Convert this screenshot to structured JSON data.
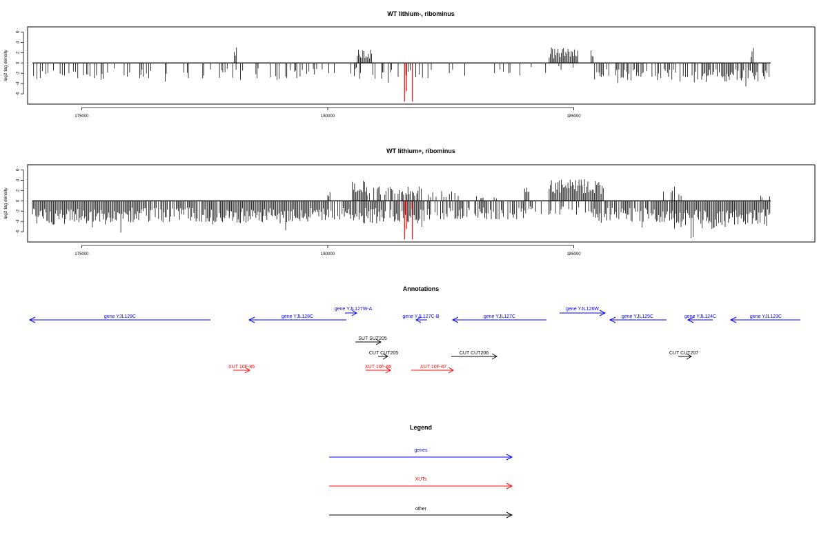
{
  "chart_data": [
    {
      "type": "bar",
      "title": "WT lithium-, ribominus",
      "xlabel": "",
      "ylabel": "log2 tag density",
      "xlim": [
        173900,
        189900
      ],
      "ylim": [
        -8,
        7
      ],
      "xticks": [
        175000,
        180000,
        185000
      ],
      "yticks": [
        -6,
        -4,
        -2,
        0,
        2,
        4,
        6
      ],
      "grid": false,
      "baseline": [
        174000,
        189000
      ],
      "series": [
        {
          "strand": "minus",
          "color": "#000000",
          "segments": [
            [
              174000,
              176000,
              -3.1,
              0.35
            ],
            [
              176000,
              177800,
              -2.9,
              0.25
            ],
            [
              177800,
              180000,
              -3.0,
              0.35
            ],
            [
              180000,
              180600,
              -2.6,
              0.25
            ],
            [
              180600,
              182200,
              -2.9,
              0.25
            ],
            [
              182200,
              184000,
              -2.3,
              0.15
            ],
            [
              184000,
              185400,
              -1.8,
              0.08
            ],
            [
              185400,
              187000,
              -3.2,
              0.5
            ],
            [
              187000,
              187600,
              -3.5,
              0.6
            ],
            [
              187600,
              189000,
              -3.4,
              0.8
            ]
          ]
        },
        {
          "strand": "plus",
          "color": "#000000",
          "segments": [
            [
              178100,
              178150,
              2.8,
              1.0
            ],
            [
              180600,
              180900,
              2.4,
              1.0
            ],
            [
              184500,
              185100,
              2.6,
              1.0
            ],
            [
              185350,
              185400,
              2.6,
              1.0
            ],
            [
              188600,
              188650,
              2.3,
              1.0
            ]
          ]
        },
        {
          "strand": "highlight",
          "color": "#ff0000",
          "bars": [
            [
              181560,
              -7.5
            ],
            [
              181600,
              -5.5
            ],
            [
              181720,
              -7.5
            ]
          ]
        }
      ]
    },
    {
      "type": "bar",
      "title": "WT lithium+, ribominus",
      "xlabel": "",
      "ylabel": "log2 tag density",
      "xlim": [
        173900,
        189900
      ],
      "ylim": [
        -8,
        7
      ],
      "xticks": [
        175000,
        180000,
        185000
      ],
      "yticks": [
        -6,
        -4,
        -2,
        0,
        2,
        4,
        6
      ],
      "grid": false,
      "baseline": [
        174000,
        189000
      ],
      "series": [
        {
          "strand": "minus",
          "color": "#000000",
          "segments": [
            [
              174000,
              176000,
              -4.2,
              1.0
            ],
            [
              176000,
              178000,
              -3.8,
              0.9
            ],
            [
              178000,
              180000,
              -4.0,
              1.0
            ],
            [
              180000,
              180500,
              -3.3,
              0.6
            ],
            [
              180500,
              182000,
              -4.0,
              0.9
            ],
            [
              182000,
              184000,
              -3.3,
              0.7
            ],
            [
              184000,
              185400,
              -2.6,
              0.4
            ],
            [
              185400,
              187000,
              -3.8,
              0.9
            ],
            [
              187000,
              188200,
              -5.0,
              1.0
            ],
            [
              188200,
              189000,
              -4.3,
              1.0
            ]
          ]
        },
        {
          "strand": "plus",
          "color": "#000000",
          "segments": [
            [
              180000,
              180050,
              2.0,
              1.0
            ],
            [
              180500,
              180800,
              3.6,
              1.0
            ],
            [
              180800,
              182000,
              2.6,
              0.5
            ],
            [
              182000,
              182700,
              1.8,
              0.3
            ],
            [
              183000,
              183500,
              0.8,
              0.2
            ],
            [
              184000,
              184100,
              3.0,
              1.0
            ],
            [
              184500,
              185600,
              3.8,
              1.0
            ],
            [
              186800,
              187200,
              2.5,
              0.5
            ],
            [
              188800,
              189000,
              1.2,
              0.5
            ]
          ]
        },
        {
          "strand": "highlight",
          "color": "#ff0000",
          "bars": [
            [
              181560,
              -7.5
            ],
            [
              181600,
              -5.5
            ],
            [
              181720,
              -7.5
            ]
          ]
        }
      ]
    }
  ],
  "annotations": {
    "title": "Annotations",
    "features": [
      {
        "label": "gene YJL129C",
        "kind": "gene",
        "color": "#0000ff",
        "dir": "left"
      },
      {
        "label": "gene YJL128C",
        "kind": "gene",
        "color": "#0000ff",
        "dir": "left"
      },
      {
        "label": "gene YJL127W-A",
        "kind": "gene",
        "color": "#0000ff",
        "dir": "right"
      },
      {
        "label": "gene YJL127C-B",
        "kind": "gene",
        "color": "#0000ff",
        "dir": "left"
      },
      {
        "label": "gene YJL127C",
        "kind": "gene",
        "color": "#0000ff",
        "dir": "left"
      },
      {
        "label": "gene YJL126W",
        "kind": "gene",
        "color": "#0000ff",
        "dir": "right"
      },
      {
        "label": "gene YJL125C",
        "kind": "gene",
        "color": "#0000ff",
        "dir": "left"
      },
      {
        "label": "gene YJL124C",
        "kind": "gene",
        "color": "#0000ff",
        "dir": "left"
      },
      {
        "label": "gene YJL123C",
        "kind": "gene",
        "color": "#0000ff",
        "dir": "left"
      },
      {
        "label": "SUT SUT205",
        "kind": "other",
        "color": "#000000",
        "dir": "right"
      },
      {
        "label": "CUT CUT205",
        "kind": "other",
        "color": "#000000",
        "dir": "right"
      },
      {
        "label": "CUT CUT206",
        "kind": "other",
        "color": "#000000",
        "dir": "right"
      },
      {
        "label": "CUT CUT207",
        "kind": "other",
        "color": "#000000",
        "dir": "right"
      },
      {
        "label": "XUT 10F-85",
        "kind": "xut",
        "color": "#ff0000",
        "dir": "right"
      },
      {
        "label": "XUT 10F-86",
        "kind": "xut",
        "color": "#ff0000",
        "dir": "right"
      },
      {
        "label": "XUT 10F-87",
        "kind": "xut",
        "color": "#ff0000",
        "dir": "right"
      }
    ]
  },
  "legend": {
    "title": "Legend",
    "items": [
      {
        "label": "genes",
        "color": "#0000ff"
      },
      {
        "label": "XUTs",
        "color": "#ff0000"
      },
      {
        "label": "other",
        "color": "#000000"
      }
    ]
  }
}
